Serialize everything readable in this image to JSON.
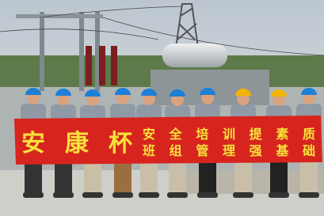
{
  "banner": {
    "title": "安康杯",
    "line1": "安全培训提素质",
    "line2": "班组管理强基础"
  }
}
